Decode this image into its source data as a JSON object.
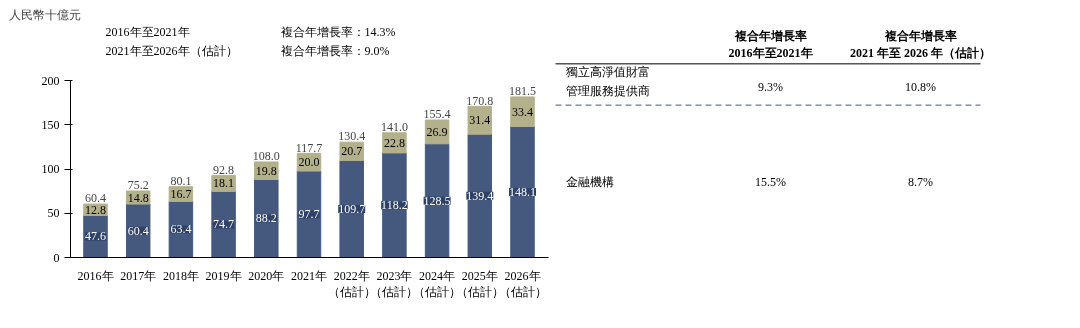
{
  "chart_data": {
    "type": "bar",
    "stacked": true,
    "ylabel": "人民幣十億元",
    "categories": [
      "2016年",
      "2017年",
      "2018年",
      "2019年",
      "2020年",
      "2021年",
      "2022年（估計）",
      "2023年（估計）",
      "2024年（估計）",
      "2025年（估計）",
      "2026年（估計）"
    ],
    "series": [
      {
        "color": "#45597e",
        "values": [
          47.6,
          60.4,
          63.4,
          74.7,
          88.2,
          97.7,
          109.7,
          118.2,
          128.5,
          139.4,
          148.1
        ],
        "value_labels": [
          "47.6",
          "60.4",
          "63.4",
          "74.7",
          "88.2",
          "97.7",
          "109.7",
          "118.2",
          "128.5",
          "139.4",
          "148.1"
        ]
      },
      {
        "color": "#b3b08c",
        "values": [
          12.8,
          14.8,
          16.7,
          18.1,
          19.8,
          20.0,
          20.7,
          22.8,
          26.9,
          31.4,
          33.4
        ],
        "value_labels": [
          "12.8",
          "14.8",
          "16.7",
          "18.1",
          "19.8",
          "20.0",
          "20.7",
          "22.8",
          "26.9",
          "31.4",
          "33.4"
        ]
      }
    ],
    "totals": [
      "60.4",
      "75.2",
      "80.1",
      "92.8",
      "108.0",
      "117.7",
      "130.4",
      "141.0",
      "155.4",
      "170.8",
      "181.5"
    ],
    "ylim": [
      0,
      200
    ],
    "yticks": [
      0,
      50,
      100,
      150,
      200
    ],
    "annotations": [
      "2016年至2021年",
      "複合年增長率：14.3%",
      "2021年至2026年（估計）",
      "複合年增長率：9.0%",
      "複合年增長率2016年至2021年",
      "複合年增長率2021 年至 2026 年（估計）",
      "獨立高淨值財富管理服務提供商",
      "9.3%",
      "10.8%",
      "金融機構",
      "15.5%",
      "8.7%"
    ]
  }
}
